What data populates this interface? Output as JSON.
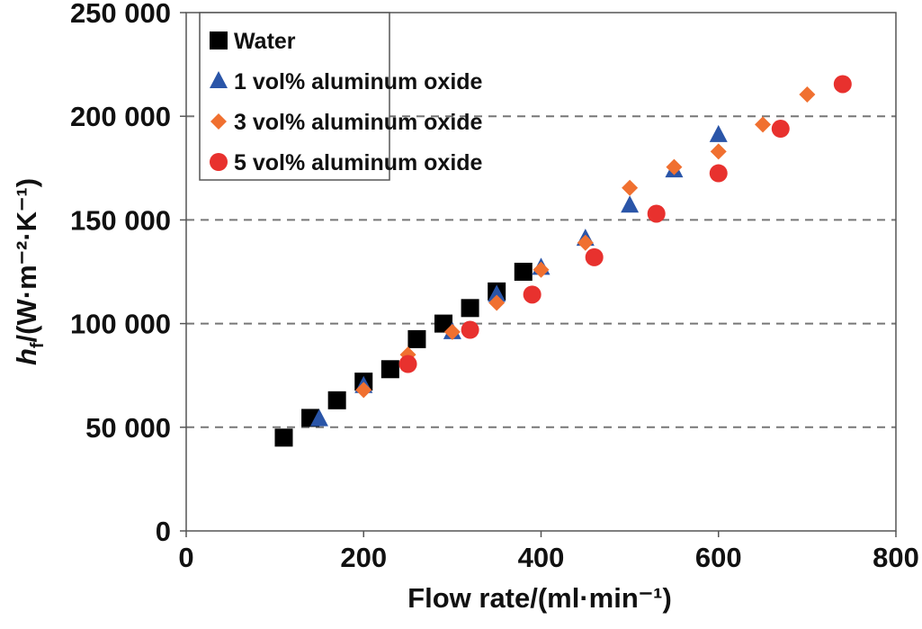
{
  "chart_data": {
    "type": "scatter",
    "title": "",
    "xlabel": "Flow rate/(ml·min⁻¹)",
    "ylabel_main": "h",
    "ylabel_sub": "f",
    "ylabel_rest": "/(W·m⁻²·K⁻¹)",
    "xlim": [
      0,
      800
    ],
    "ylim": [
      0,
      250000
    ],
    "x_ticks": [
      0,
      200,
      400,
      600,
      800
    ],
    "x_tick_labels": [
      "0",
      "200",
      "400",
      "600",
      "800"
    ],
    "y_ticks": [
      0,
      50000,
      100000,
      150000,
      200000,
      250000
    ],
    "y_tick_labels": [
      "0",
      "50 000",
      "100 000",
      "150 000",
      "200 000",
      "250 000"
    ],
    "grid": "horizontal dashed",
    "legend_position": "top-left",
    "series": [
      {
        "name": "Water",
        "marker": "square",
        "color": "#000000",
        "x": [
          110,
          140,
          170,
          200,
          230,
          260,
          290,
          320,
          350,
          380
        ],
        "y": [
          45000,
          54500,
          63000,
          72000,
          78000,
          92500,
          100000,
          107500,
          115500,
          125000
        ]
      },
      {
        "name": "1 vol% aluminum oxide",
        "marker": "triangle",
        "color": "#2a55a8",
        "x": [
          150,
          200,
          300,
          350,
          400,
          450,
          500,
          550,
          600
        ],
        "y": [
          54000,
          70000,
          96000,
          114000,
          127000,
          141000,
          157000,
          174000,
          191000
        ]
      },
      {
        "name": "3 vol% aluminum oxide",
        "marker": "diamond",
        "color": "#f07030",
        "x": [
          200,
          250,
          300,
          350,
          400,
          450,
          500,
          550,
          600,
          650,
          700
        ],
        "y": [
          68000,
          85000,
          96000,
          110000,
          126000,
          139000,
          165500,
          175500,
          183000,
          196000,
          210500
        ]
      },
      {
        "name": "5 vol% aluminum oxide",
        "marker": "circle",
        "color": "#e8312e",
        "x": [
          250,
          320,
          390,
          460,
          530,
          600,
          670,
          740
        ],
        "y": [
          80500,
          97000,
          114000,
          132000,
          153000,
          172500,
          194000,
          215500
        ]
      }
    ]
  }
}
